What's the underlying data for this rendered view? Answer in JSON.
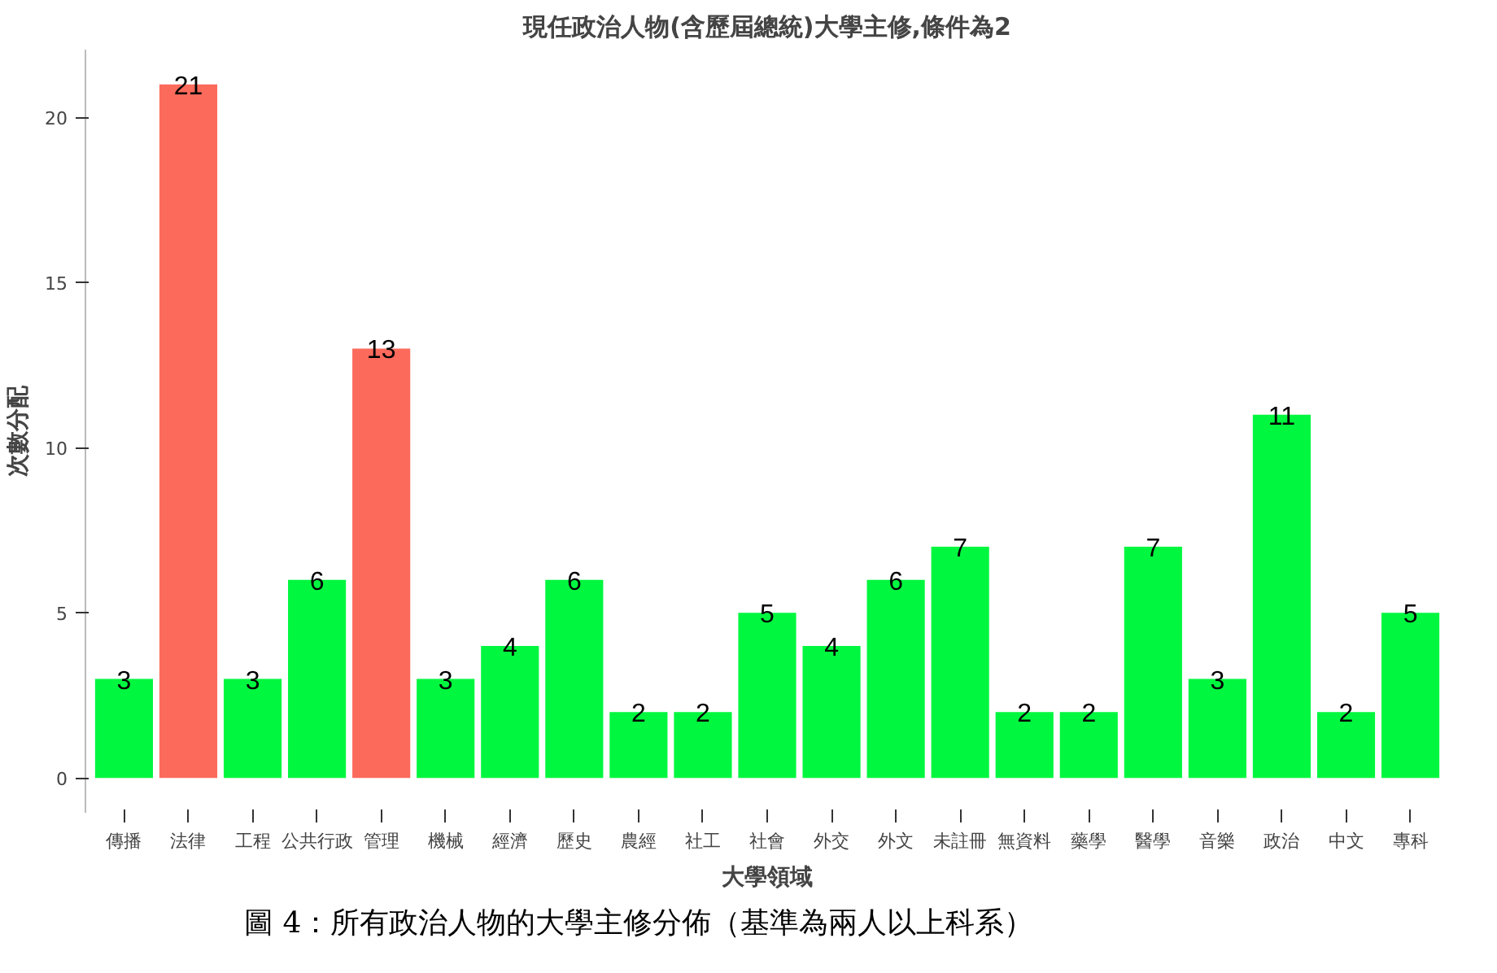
{
  "chart_data": {
    "type": "bar",
    "title": "現任政治人物(含歷屆總統)大學主修,條件為2",
    "xlabel": "大學領域",
    "ylabel": "次數分配",
    "categories": [
      "傳播",
      "法律",
      "工程",
      "公共行政",
      "管理",
      "機械",
      "經濟",
      "歷史",
      "農經",
      "社工",
      "社會",
      "外交",
      "外文",
      "未註冊",
      "無資料",
      "藥學",
      "醫學",
      "音樂",
      "政治",
      "中文",
      "專科"
    ],
    "values": [
      3,
      21,
      3,
      6,
      13,
      3,
      4,
      6,
      2,
      2,
      5,
      4,
      6,
      7,
      2,
      2,
      7,
      3,
      11,
      2,
      5
    ],
    "colors": [
      "#00f73f",
      "#fc6a5b",
      "#00f73f",
      "#00f73f",
      "#fc6a5b",
      "#00f73f",
      "#00f73f",
      "#00f73f",
      "#00f73f",
      "#00f73f",
      "#00f73f",
      "#00f73f",
      "#00f73f",
      "#00f73f",
      "#00f73f",
      "#00f73f",
      "#00f73f",
      "#00f73f",
      "#00f73f",
      "#00f73f",
      "#00f73f"
    ],
    "ylim": [
      -1.05,
      22.05
    ],
    "yticks": [
      0,
      5,
      10,
      15,
      20
    ],
    "grid": false,
    "data_labels": true,
    "annotations": [
      "圖 4：所有政治人物的大學主修分佈（基準為兩人以上科系）"
    ]
  }
}
